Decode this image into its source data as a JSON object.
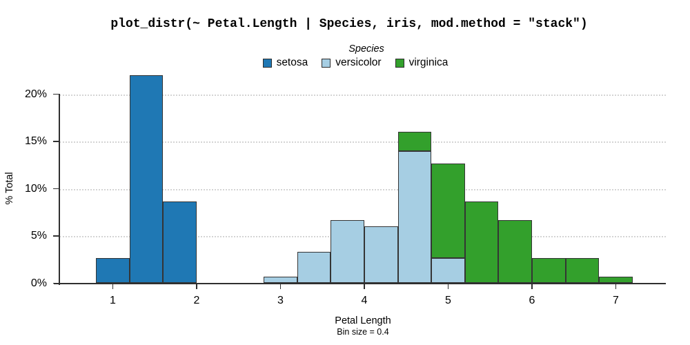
{
  "title": "plot_distr(~ Petal.Length | Species, iris, mod.method = \"stack\")",
  "legend": {
    "title": "Species",
    "entries": [
      {
        "label": "setosa",
        "color": "#1F78B4"
      },
      {
        "label": "versicolor",
        "color": "#A6CEE3"
      },
      {
        "label": "virginica",
        "color": "#33A02C"
      }
    ]
  },
  "chart_data": {
    "type": "bar",
    "subtype": "stacked-histogram",
    "title": "plot_distr(~ Petal.Length | Species, iris, mod.method = \"stack\")",
    "xlabel": "Petal Length",
    "ylabel": "% Total",
    "note": "Bin size = 0.4",
    "bin_size": 0.4,
    "xlim": [
      0.35,
      7.6
    ],
    "ylim": [
      0,
      22.7
    ],
    "grid": "horizontal-dotted",
    "legend_position": "top",
    "xticks": [
      1,
      2,
      3,
      4,
      5,
      6,
      7
    ],
    "yticks": [
      {
        "value": 0,
        "label": "0%"
      },
      {
        "value": 5,
        "label": "5%"
      },
      {
        "value": 10,
        "label": "10%"
      },
      {
        "value": 15,
        "label": "15%"
      },
      {
        "value": 20,
        "label": "20%"
      }
    ],
    "bin_starts": [
      0.8,
      1.2,
      1.6,
      2.8,
      3.2,
      3.6,
      4.0,
      4.4,
      4.8,
      5.2,
      5.6,
      6.0,
      6.4,
      6.8
    ],
    "series": [
      {
        "name": "setosa",
        "color": "#1F78B4",
        "values": [
          2.67,
          22,
          8.67,
          0,
          0,
          0,
          0,
          0,
          0,
          0,
          0,
          0,
          0,
          0
        ]
      },
      {
        "name": "versicolor",
        "color": "#A6CEE3",
        "values": [
          0,
          0,
          0,
          0.67,
          3.33,
          6.67,
          6.0,
          14.0,
          2.67,
          0,
          0,
          0,
          0,
          0
        ]
      },
      {
        "name": "virginica",
        "color": "#33A02C",
        "values": [
          0,
          0,
          0,
          0,
          0,
          0,
          0,
          2.0,
          10.0,
          8.67,
          6.67,
          2.67,
          2.67,
          0.67
        ]
      }
    ]
  }
}
